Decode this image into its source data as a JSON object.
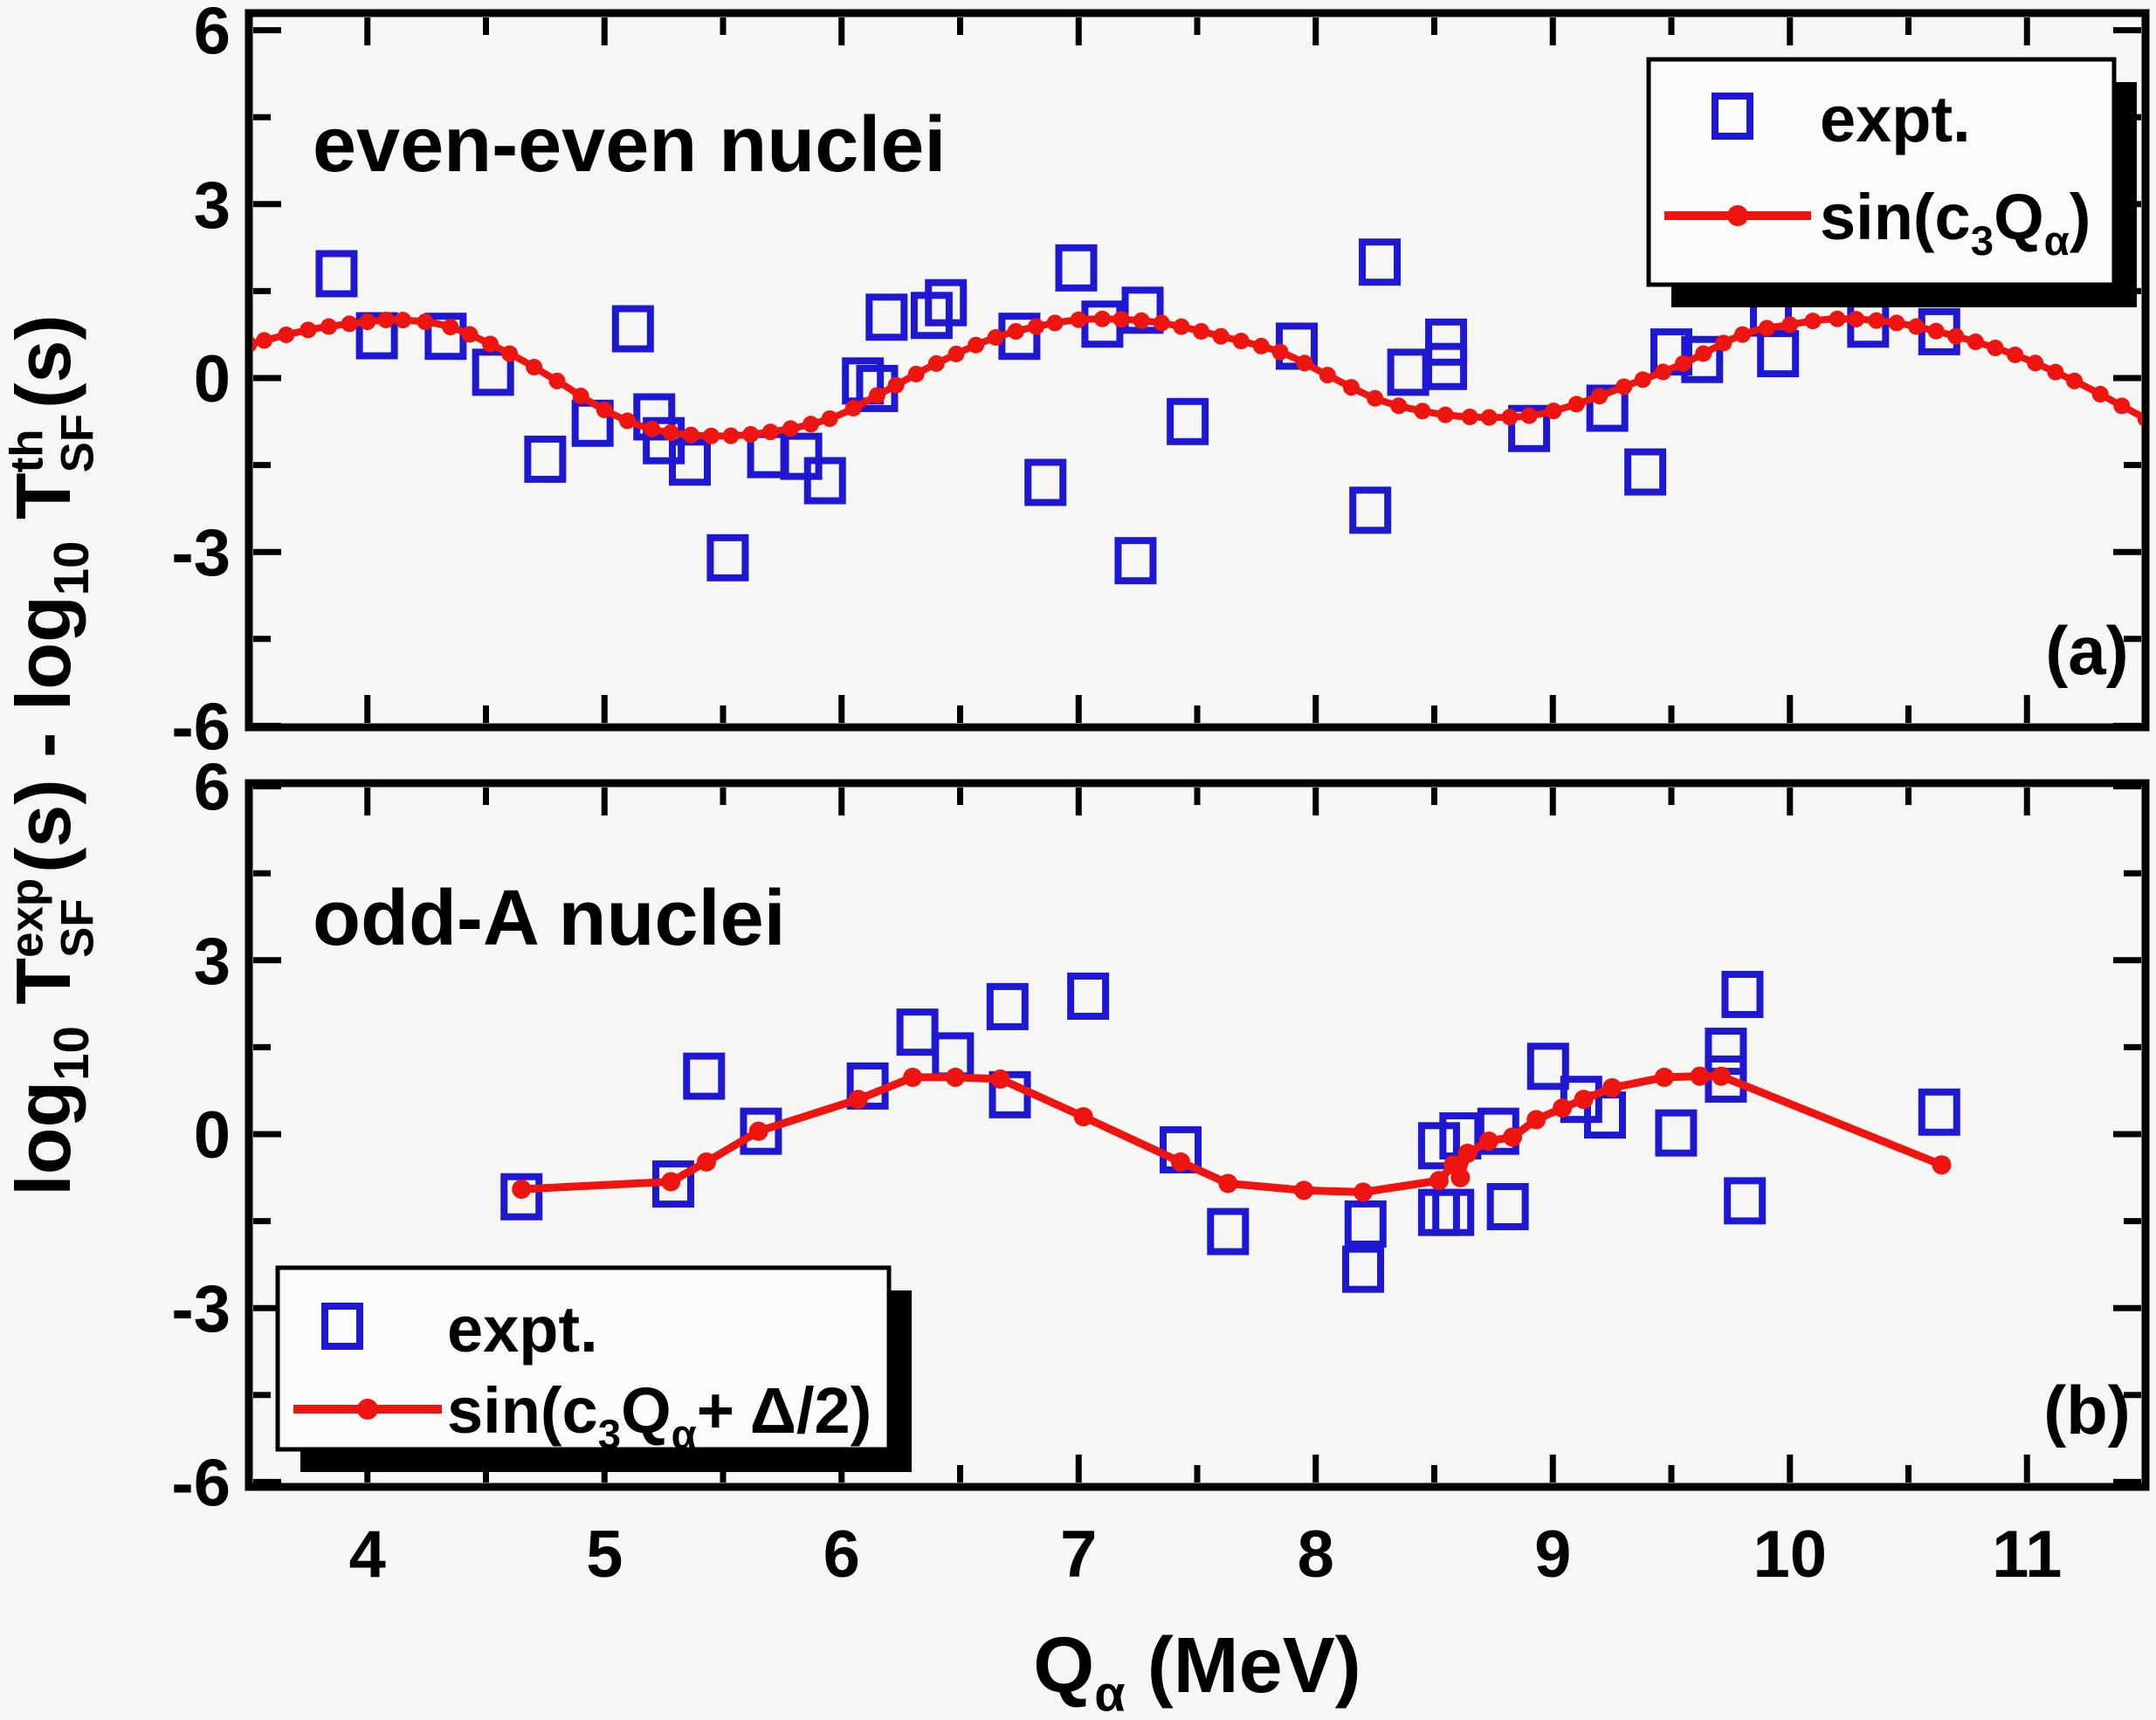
{
  "figure": {
    "background": "#f6f6f4",
    "frame_color": "#000000",
    "accent_blue": "#1e18d2",
    "accent_red": "#ee1511",
    "legend_fill": "#fbfbf9",
    "legend_shadow": "#000000"
  },
  "labels": {
    "ylabel_text": "log10 T_SF^exp(s) - log10 T_SF^th(s)",
    "ylabel_segments": [
      {
        "t": "log"
      },
      {
        "t": "10",
        "s": "sub"
      },
      {
        "t": " T",
        "s": "n"
      },
      {
        "t": "exp",
        "s": "supstack"
      },
      {
        "t": "SF",
        "s": "substack"
      },
      {
        "t": "(s) - log",
        "s": "n"
      },
      {
        "t": "10",
        "s": "sub"
      },
      {
        "t": " T",
        "s": "n"
      },
      {
        "t": "th",
        "s": "supstack"
      },
      {
        "t": "SF",
        "s": "substack"
      },
      {
        "t": "(s)",
        "s": "n"
      }
    ],
    "xlabel_text": "Qα (MeV)",
    "xlabel_segments": [
      {
        "t": "Q"
      },
      {
        "t": "α",
        "s": "sub"
      },
      {
        "t": " (MeV)",
        "s": "n"
      }
    ]
  },
  "chart_data": [
    {
      "type": "scatter",
      "title": "even-even nuclei",
      "panel_label": "(a)",
      "xlim": [
        3.5,
        11.5
      ],
      "ylim": [
        -6,
        6
      ],
      "x_major_ticks": [
        4,
        5,
        6,
        7,
        8,
        9,
        10,
        11
      ],
      "x_minor_ticks": [
        4.5,
        5.5,
        6.5,
        7.5,
        8.5,
        9.5,
        10.5
      ],
      "y_major_ticks": [
        6,
        3,
        0,
        -3,
        -6
      ],
      "y_minor_ticks": [
        4.5,
        1.5,
        -1.5,
        -4.5
      ],
      "legend_position": "top-right",
      "series": [
        {
          "name": "expt.",
          "type": "scatter",
          "marker": "open-square",
          "color": "#1e18d2",
          "points": [
            [
              3.87,
              1.8
            ],
            [
              4.04,
              0.73
            ],
            [
              4.33,
              0.72
            ],
            [
              4.53,
              0.1
            ],
            [
              4.75,
              -1.4
            ],
            [
              4.95,
              -0.78
            ],
            [
              5.12,
              0.85
            ],
            [
              5.21,
              -0.67
            ],
            [
              5.25,
              -1.08
            ],
            [
              5.36,
              -1.45
            ],
            [
              5.52,
              -3.1
            ],
            [
              5.69,
              -1.32
            ],
            [
              5.83,
              -1.35
            ],
            [
              5.93,
              -1.77
            ],
            [
              6.09,
              -0.05
            ],
            [
              6.15,
              -0.18
            ],
            [
              6.19,
              1.05
            ],
            [
              6.38,
              1.08
            ],
            [
              6.44,
              1.3
            ],
            [
              6.75,
              0.72
            ],
            [
              6.86,
              -1.8
            ],
            [
              6.99,
              1.9
            ],
            [
              7.1,
              0.93
            ],
            [
              7.27,
              1.17
            ],
            [
              7.24,
              -3.15
            ],
            [
              7.46,
              -0.75
            ],
            [
              7.92,
              0.55
            ],
            [
              8.23,
              -2.28
            ],
            [
              8.27,
              2.0
            ],
            [
              8.39,
              0.1
            ],
            [
              8.55,
              0.62
            ],
            [
              8.55,
              0.2
            ],
            [
              8.9,
              -0.87
            ],
            [
              9.23,
              -0.52
            ],
            [
              9.39,
              -1.62
            ],
            [
              9.5,
              0.45
            ],
            [
              9.63,
              0.32
            ],
            [
              9.92,
              1.12
            ],
            [
              9.95,
              0.42
            ],
            [
              10.33,
              0.93
            ],
            [
              10.63,
              0.8
            ]
          ]
        },
        {
          "name": "sin(c₃Qα)",
          "label_segments": [
            {
              "t": "sin(c"
            },
            {
              "t": "3",
              "s": "sub"
            },
            {
              "t": "Q"
            },
            {
              "t": "α",
              "s": "sub"
            },
            {
              "t": ")"
            }
          ],
          "type": "line-with-dots",
          "color": "#ee1511",
          "smooth": true,
          "points": [
            [
              3.5,
              0.58
            ],
            [
              3.75,
              0.83
            ],
            [
              4.0,
              0.97
            ],
            [
              4.15,
              1.0
            ],
            [
              4.35,
              0.88
            ],
            [
              4.6,
              0.42
            ],
            [
              4.8,
              -0.05
            ],
            [
              5.0,
              -0.55
            ],
            [
              5.2,
              -0.88
            ],
            [
              5.45,
              -1.0
            ],
            [
              5.7,
              -0.93
            ],
            [
              5.95,
              -0.7
            ],
            [
              6.15,
              -0.3
            ],
            [
              6.4,
              0.25
            ],
            [
              6.65,
              0.7
            ],
            [
              6.9,
              0.95
            ],
            [
              7.1,
              1.02
            ],
            [
              7.35,
              0.95
            ],
            [
              7.6,
              0.72
            ],
            [
              7.85,
              0.45
            ],
            [
              8.05,
              0.05
            ],
            [
              8.25,
              -0.35
            ],
            [
              8.45,
              -0.57
            ],
            [
              8.65,
              -0.67
            ],
            [
              8.9,
              -0.65
            ],
            [
              9.1,
              -0.45
            ],
            [
              9.3,
              -0.15
            ],
            [
              9.55,
              0.25
            ],
            [
              9.8,
              0.75
            ],
            [
              10.0,
              0.92
            ],
            [
              10.2,
              1.02
            ],
            [
              10.45,
              0.95
            ],
            [
              10.7,
              0.72
            ],
            [
              10.95,
              0.4
            ],
            [
              11.2,
              -0.05
            ],
            [
              11.4,
              -0.48
            ],
            [
              11.5,
              -0.7
            ]
          ]
        }
      ]
    },
    {
      "type": "scatter",
      "title": "odd-A nuclei",
      "panel_label": "(b)",
      "xlim": [
        3.5,
        11.5
      ],
      "ylim": [
        -6,
        6
      ],
      "x_major_ticks": [
        4,
        5,
        6,
        7,
        8,
        9,
        10,
        11
      ],
      "x_minor_ticks": [
        4.5,
        5.5,
        6.5,
        7.5,
        8.5,
        9.5,
        10.5
      ],
      "y_major_ticks": [
        6,
        3,
        0,
        -3,
        -6
      ],
      "y_minor_ticks": [
        4.5,
        1.5,
        -1.5,
        -4.5
      ],
      "legend_position": "bottom-left",
      "series": [
        {
          "name": "expt.",
          "type": "scatter",
          "marker": "open-square",
          "color": "#1e18d2",
          "points": [
            [
              4.65,
              -1.08
            ],
            [
              5.29,
              -0.86
            ],
            [
              5.42,
              1.0
            ],
            [
              5.66,
              0.05
            ],
            [
              6.11,
              0.83
            ],
            [
              6.32,
              1.76
            ],
            [
              6.47,
              1.35
            ],
            [
              6.7,
              2.2
            ],
            [
              6.71,
              0.68
            ],
            [
              7.04,
              2.38
            ],
            [
              7.43,
              -0.27
            ],
            [
              7.63,
              -1.68
            ],
            [
              8.2,
              -2.33
            ],
            [
              8.21,
              -1.55
            ],
            [
              8.52,
              -1.35
            ],
            [
              8.58,
              -1.35
            ],
            [
              8.52,
              -0.2
            ],
            [
              8.61,
              -0.03
            ],
            [
              8.77,
              0.05
            ],
            [
              8.81,
              -1.25
            ],
            [
              8.98,
              1.17
            ],
            [
              9.12,
              0.6
            ],
            [
              9.22,
              0.33
            ],
            [
              9.52,
              0.02
            ],
            [
              9.73,
              1.43
            ],
            [
              9.73,
              0.95
            ],
            [
              9.8,
              2.41
            ],
            [
              9.81,
              -1.15
            ],
            [
              10.63,
              0.38
            ]
          ]
        },
        {
          "name": "sin(c₃Qα+ Δ/2)",
          "label_segments": [
            {
              "t": "sin(c"
            },
            {
              "t": "3",
              "s": "sub"
            },
            {
              "t": "Q"
            },
            {
              "t": "α",
              "s": "sub"
            },
            {
              "t": "+ Δ/2)"
            }
          ],
          "type": "line-with-dots",
          "color": "#ee1511",
          "smooth": false,
          "points": [
            [
              4.65,
              -0.95
            ],
            [
              5.28,
              -0.82
            ],
            [
              5.43,
              -0.48
            ],
            [
              5.65,
              0.05
            ],
            [
              6.07,
              0.6
            ],
            [
              6.3,
              0.98
            ],
            [
              6.48,
              0.98
            ],
            [
              6.67,
              0.95
            ],
            [
              7.02,
              0.3
            ],
            [
              7.43,
              -0.48
            ],
            [
              7.63,
              -0.85
            ],
            [
              7.95,
              -0.97
            ],
            [
              8.2,
              -1.0
            ],
            [
              8.52,
              -0.8
            ],
            [
              8.58,
              -0.53
            ],
            [
              8.61,
              -0.75
            ],
            [
              8.64,
              -0.33
            ],
            [
              8.73,
              -0.12
            ],
            [
              8.83,
              -0.05
            ],
            [
              8.93,
              0.25
            ],
            [
              9.04,
              0.45
            ],
            [
              9.13,
              0.6
            ],
            [
              9.25,
              0.8
            ],
            [
              9.47,
              0.98
            ],
            [
              9.62,
              1.0
            ],
            [
              9.71,
              1.0
            ],
            [
              10.64,
              -0.53
            ]
          ]
        }
      ]
    }
  ]
}
